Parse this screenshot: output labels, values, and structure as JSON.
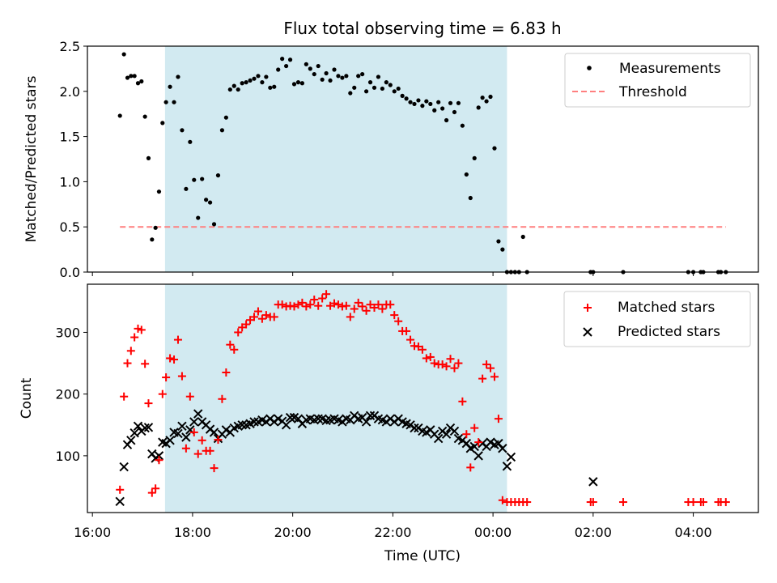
{
  "figure": {
    "title": "Flux total observing time = 6.83 h",
    "xlabel": "Time (UTC)"
  },
  "colors": {
    "shade": "#add8e6",
    "measurements": "#000000",
    "threshold": "#ff7f7f",
    "matched": "#ff0000",
    "predicted": "#000000"
  },
  "chart_data": [
    {
      "type": "scatter",
      "title": "Flux total observing time = 6.83 h",
      "xlabel": "Time (UTC)",
      "ylabel": "Matched/Predicted stars",
      "x_unit": "hours since 16:00 UTC",
      "xlim": [
        -0.1,
        13.3
      ],
      "ylim": [
        0,
        2.5
      ],
      "yticks": [
        0.0,
        0.5,
        1.0,
        1.5,
        2.0,
        2.5
      ],
      "ytick_labels": [
        "0.0",
        "0.5",
        "1.0",
        "1.5",
        "2.0",
        "2.5"
      ],
      "xticks": [
        0,
        2,
        4,
        6,
        8,
        10,
        12
      ],
      "xtick_labels": [
        "16:00",
        "18:00",
        "20:00",
        "22:00",
        "00:00",
        "02:00",
        "04:00"
      ],
      "shaded_interval": [
        1.45,
        8.28
      ],
      "legend": {
        "position": "top-right",
        "entries": [
          "Measurements",
          "Threshold"
        ]
      },
      "threshold": {
        "name": "Threshold",
        "value": 0.5,
        "x_range": [
          0.55,
          12.65
        ]
      },
      "series": [
        {
          "name": "Measurements",
          "x": [
            0.55,
            0.63,
            0.7,
            0.77,
            0.84,
            0.91,
            0.98,
            1.05,
            1.12,
            1.19,
            1.26,
            1.33,
            1.4,
            1.47,
            1.55,
            1.63,
            1.71,
            1.79,
            1.87,
            1.95,
            2.03,
            2.11,
            2.19,
            2.27,
            2.35,
            2.43,
            2.51,
            2.59,
            2.67,
            2.75,
            2.83,
            2.91,
            2.99,
            3.07,
            3.15,
            3.23,
            3.31,
            3.39,
            3.47,
            3.55,
            3.63,
            3.71,
            3.79,
            3.87,
            3.95,
            4.03,
            4.11,
            4.19,
            4.27,
            4.35,
            4.43,
            4.51,
            4.59,
            4.67,
            4.75,
            4.83,
            4.91,
            4.99,
            5.07,
            5.15,
            5.23,
            5.31,
            5.39,
            5.47,
            5.55,
            5.63,
            5.71,
            5.79,
            5.87,
            5.95,
            6.03,
            6.11,
            6.19,
            6.27,
            6.35,
            6.43,
            6.51,
            6.59,
            6.67,
            6.75,
            6.83,
            6.91,
            6.99,
            7.07,
            7.15,
            7.23,
            7.31,
            7.39,
            7.47,
            7.55,
            7.63,
            7.71,
            7.79,
            7.87,
            7.95,
            8.03,
            8.11,
            8.19,
            8.28,
            8.36,
            8.44,
            8.52,
            8.6,
            8.68,
            9.95,
            10.0,
            10.6,
            11.9,
            12.0,
            12.15,
            12.2,
            12.5,
            12.55,
            12.65
          ],
          "values": [
            1.73,
            2.41,
            2.15,
            2.17,
            2.17,
            2.09,
            2.11,
            1.72,
            1.26,
            0.36,
            0.49,
            0.89,
            1.65,
            1.88,
            2.05,
            1.88,
            2.16,
            1.57,
            0.92,
            1.44,
            1.02,
            0.6,
            1.03,
            0.8,
            0.77,
            0.53,
            1.07,
            1.57,
            1.71,
            2.02,
            2.06,
            2.02,
            2.09,
            2.1,
            2.12,
            2.14,
            2.17,
            2.1,
            2.16,
            2.04,
            2.05,
            2.24,
            2.36,
            2.28,
            2.35,
            2.08,
            2.1,
            2.09,
            2.3,
            2.25,
            2.19,
            2.28,
            2.13,
            2.2,
            2.12,
            2.24,
            2.17,
            2.15,
            2.17,
            1.98,
            2.04,
            2.17,
            2.19,
            2.0,
            2.1,
            2.04,
            2.16,
            2.03,
            2.1,
            2.07,
            2.0,
            2.03,
            1.95,
            1.92,
            1.88,
            1.86,
            1.9,
            1.84,
            1.89,
            1.86,
            1.79,
            1.88,
            1.81,
            1.68,
            1.87,
            1.77,
            1.87,
            1.62,
            1.08,
            0.82,
            1.26,
            1.82,
            1.93,
            1.89,
            1.94,
            1.37,
            0.34,
            0.25,
            0.0,
            0.0,
            0.0,
            0.0,
            0.39,
            0.0,
            0.0,
            0.0,
            0.0,
            0.0,
            0.0,
            0.0,
            0.0,
            0.0,
            0.0,
            0.0
          ]
        }
      ]
    },
    {
      "type": "scatter",
      "ylabel": "Count",
      "xlabel": "Time (UTC)",
      "x_unit": "hours since 16:00 UTC",
      "xlim": [
        -0.1,
        13.3
      ],
      "ylim": [
        8,
        378
      ],
      "yticks": [
        100,
        200,
        300
      ],
      "ytick_labels": [
        "100",
        "200",
        "300"
      ],
      "xticks": [
        0,
        2,
        4,
        6,
        8,
        10,
        12
      ],
      "xtick_labels": [
        "16:00",
        "18:00",
        "20:00",
        "22:00",
        "00:00",
        "02:00",
        "04:00"
      ],
      "shaded_interval": [
        1.45,
        8.28
      ],
      "legend": {
        "position": "top-right",
        "entries": [
          "Matched stars",
          "Predicted stars"
        ]
      },
      "series": [
        {
          "name": "Matched stars",
          "marker": "+",
          "x": [
            0.55,
            0.63,
            0.7,
            0.77,
            0.84,
            0.91,
            0.98,
            1.05,
            1.12,
            1.19,
            1.26,
            1.33,
            1.4,
            1.47,
            1.55,
            1.63,
            1.71,
            1.79,
            1.87,
            1.95,
            2.03,
            2.11,
            2.19,
            2.27,
            2.35,
            2.43,
            2.51,
            2.59,
            2.67,
            2.75,
            2.83,
            2.91,
            2.99,
            3.07,
            3.15,
            3.23,
            3.31,
            3.39,
            3.47,
            3.55,
            3.63,
            3.71,
            3.79,
            3.87,
            3.95,
            4.03,
            4.11,
            4.19,
            4.27,
            4.35,
            4.43,
            4.51,
            4.59,
            4.67,
            4.75,
            4.83,
            4.91,
            4.99,
            5.07,
            5.15,
            5.23,
            5.31,
            5.39,
            5.47,
            5.55,
            5.63,
            5.71,
            5.79,
            5.87,
            5.95,
            6.03,
            6.11,
            6.19,
            6.27,
            6.35,
            6.43,
            6.51,
            6.59,
            6.67,
            6.75,
            6.83,
            6.91,
            6.99,
            7.07,
            7.15,
            7.23,
            7.31,
            7.39,
            7.47,
            7.55,
            7.63,
            7.71,
            7.79,
            7.87,
            7.95,
            8.03,
            8.11,
            8.19,
            8.28,
            8.36,
            8.44,
            8.52,
            8.6,
            8.68,
            9.95,
            10.0,
            10.6,
            11.9,
            12.0,
            12.15,
            12.2,
            12.5,
            12.55,
            12.65
          ],
          "values": [
            45,
            196,
            250,
            270,
            292,
            306,
            304,
            249,
            185,
            40,
            47,
            93,
            200,
            227,
            258,
            256,
            288,
            229,
            112,
            196,
            138,
            103,
            125,
            108,
            108,
            80,
            126,
            192,
            235,
            280,
            272,
            300,
            308,
            313,
            320,
            325,
            334,
            322,
            328,
            325,
            325,
            345,
            345,
            342,
            343,
            342,
            345,
            348,
            342,
            345,
            353,
            343,
            355,
            362,
            343,
            347,
            345,
            342,
            343,
            325,
            338,
            348,
            342,
            335,
            345,
            340,
            345,
            338,
            345,
            345,
            328,
            318,
            302,
            302,
            288,
            278,
            277,
            272,
            258,
            260,
            250,
            248,
            248,
            245,
            257,
            242,
            250,
            188,
            135,
            81,
            145,
            122,
            225,
            248,
            242,
            228,
            160,
            28,
            25,
            25,
            25,
            25,
            25,
            25,
            25,
            25,
            25,
            25,
            25,
            25,
            25,
            25,
            25,
            25
          ]
        },
        {
          "name": "Predicted stars",
          "marker": "x",
          "x": [
            0.55,
            0.63,
            0.7,
            0.77,
            0.84,
            0.91,
            0.98,
            1.05,
            1.12,
            1.19,
            1.26,
            1.33,
            1.4,
            1.47,
            1.55,
            1.63,
            1.71,
            1.79,
            1.87,
            1.95,
            2.03,
            2.11,
            2.19,
            2.27,
            2.35,
            2.43,
            2.51,
            2.59,
            2.67,
            2.75,
            2.83,
            2.91,
            2.99,
            3.07,
            3.15,
            3.23,
            3.31,
            3.39,
            3.47,
            3.55,
            3.63,
            3.71,
            3.79,
            3.87,
            3.95,
            4.03,
            4.11,
            4.19,
            4.27,
            4.35,
            4.43,
            4.51,
            4.59,
            4.67,
            4.75,
            4.83,
            4.91,
            4.99,
            5.07,
            5.15,
            5.23,
            5.31,
            5.39,
            5.47,
            5.55,
            5.63,
            5.71,
            5.79,
            5.87,
            5.95,
            6.03,
            6.11,
            6.19,
            6.27,
            6.35,
            6.43,
            6.51,
            6.59,
            6.67,
            6.75,
            6.83,
            6.91,
            6.99,
            7.07,
            7.15,
            7.23,
            7.31,
            7.39,
            7.47,
            7.55,
            7.63,
            7.71,
            7.79,
            7.87,
            7.95,
            8.03,
            8.11,
            8.19,
            8.28,
            8.36,
            10.0
          ],
          "values": [
            26,
            82,
            118,
            125,
            137,
            148,
            140,
            145,
            146,
            103,
            96,
            100,
            122,
            120,
            125,
            138,
            136,
            148,
            130,
            142,
            155,
            168,
            155,
            150,
            143,
            138,
            128,
            135,
            142,
            138,
            145,
            148,
            150,
            150,
            152,
            155,
            155,
            158,
            155,
            160,
            155,
            160,
            156,
            150,
            162,
            162,
            160,
            152,
            158,
            160,
            158,
            160,
            160,
            157,
            158,
            160,
            158,
            155,
            160,
            158,
            165,
            160,
            162,
            155,
            165,
            165,
            160,
            158,
            155,
            160,
            155,
            160,
            155,
            152,
            150,
            145,
            145,
            140,
            138,
            142,
            135,
            128,
            140,
            135,
            145,
            140,
            128,
            125,
            120,
            112,
            115,
            100,
            120,
            115,
            122,
            118,
            120,
            112,
            83,
            98,
            58
          ]
        }
      ]
    }
  ]
}
